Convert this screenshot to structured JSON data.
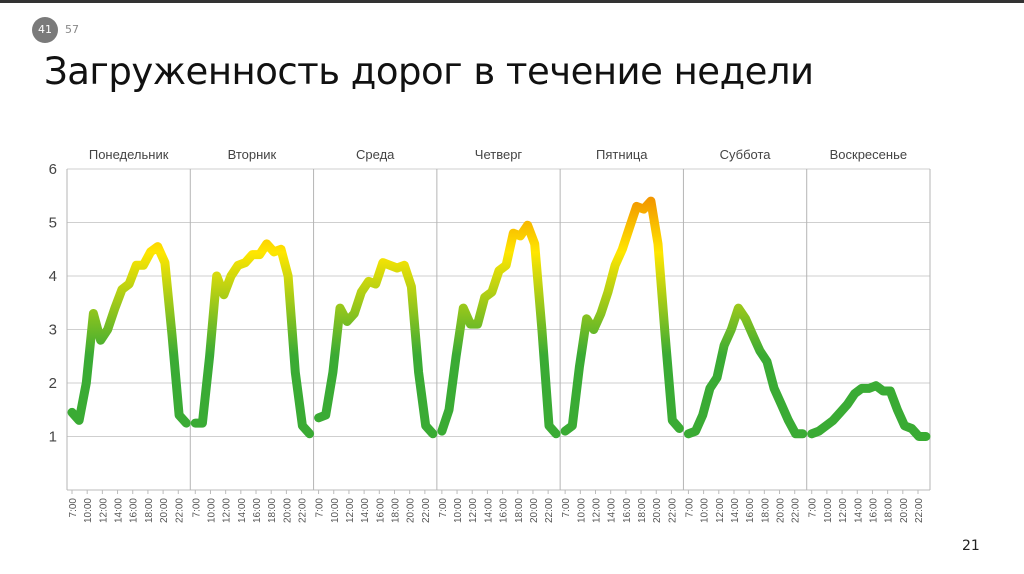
{
  "slide": {
    "current": "41",
    "total": "57",
    "page_number": "21"
  },
  "title": "Загруженность дорог в течение недели",
  "chart_data": {
    "type": "line",
    "title": "",
    "xlabel": "",
    "ylabel": "",
    "ylim": [
      0,
      6
    ],
    "yticks": [
      "1",
      "2",
      "3",
      "4",
      "5",
      "6"
    ],
    "grid": true,
    "hours": [
      7,
      8,
      9,
      10,
      11,
      12,
      13,
      14,
      15,
      16,
      17,
      18,
      19,
      20,
      21,
      22,
      23
    ],
    "xtick_labels": [
      "7:00",
      "10:00",
      "12:00",
      "14:00",
      "16:00",
      "18:00",
      "20:00",
      "22:00"
    ],
    "colors": {
      "low": "#3aab34",
      "mid": "#ffe600",
      "high": "#f39a00"
    },
    "series": [
      {
        "name": "Понедельник",
        "values": [
          1.45,
          1.3,
          2.0,
          3.3,
          2.8,
          3.0,
          3.4,
          3.75,
          3.85,
          4.2,
          4.2,
          4.45,
          4.55,
          4.25,
          2.9,
          1.4,
          1.25
        ]
      },
      {
        "name": "Вторник",
        "values": [
          1.25,
          1.25,
          2.5,
          4.0,
          3.65,
          4.0,
          4.2,
          4.25,
          4.4,
          4.4,
          4.6,
          4.45,
          4.5,
          4.0,
          2.2,
          1.2,
          1.05
        ]
      },
      {
        "name": "Среда",
        "values": [
          1.35,
          1.4,
          2.2,
          3.4,
          3.15,
          3.3,
          3.7,
          3.9,
          3.85,
          4.25,
          4.2,
          4.15,
          4.2,
          3.8,
          2.2,
          1.2,
          1.05
        ]
      },
      {
        "name": "Четверг",
        "values": [
          1.1,
          1.5,
          2.5,
          3.4,
          3.1,
          3.1,
          3.6,
          3.7,
          4.1,
          4.2,
          4.8,
          4.75,
          4.95,
          4.6,
          3.0,
          1.2,
          1.05
        ]
      },
      {
        "name": "Пятница",
        "values": [
          1.1,
          1.2,
          2.3,
          3.2,
          3.0,
          3.3,
          3.7,
          4.2,
          4.5,
          4.9,
          5.3,
          5.25,
          5.4,
          4.6,
          2.9,
          1.3,
          1.15
        ]
      },
      {
        "name": "Суббота",
        "values": [
          1.05,
          1.1,
          1.4,
          1.9,
          2.1,
          2.7,
          3.0,
          3.4,
          3.2,
          2.9,
          2.6,
          2.4,
          1.9,
          1.6,
          1.3,
          1.05,
          1.05
        ]
      },
      {
        "name": "Воскресенье",
        "values": [
          1.05,
          1.1,
          1.2,
          1.3,
          1.45,
          1.6,
          1.8,
          1.9,
          1.9,
          1.95,
          1.85,
          1.85,
          1.5,
          1.2,
          1.15,
          1.0,
          1.0
        ]
      }
    ]
  }
}
